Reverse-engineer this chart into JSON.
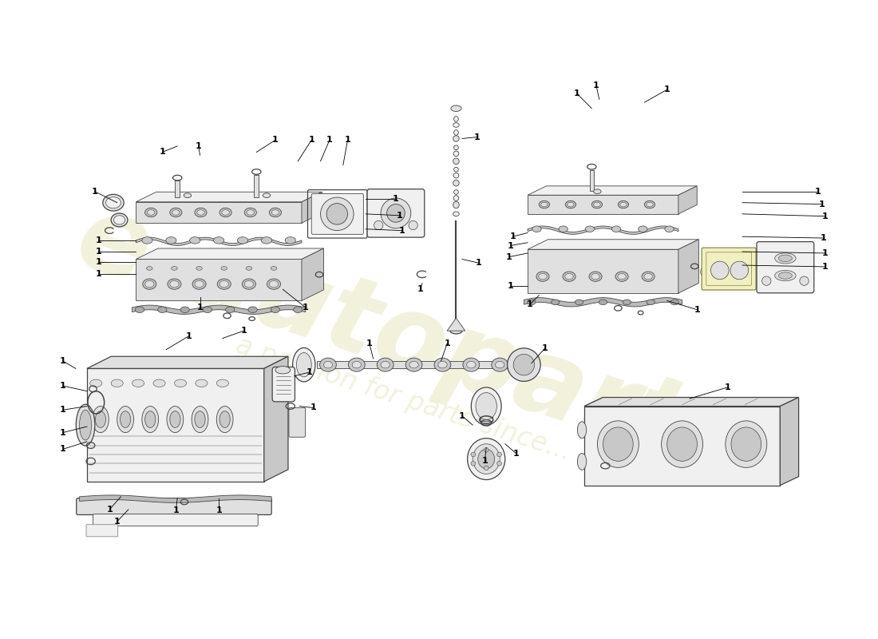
{
  "background_color": "#ffffff",
  "watermark_line1": "e-autoparts",
  "watermark_line2": "a passion for parts since...",
  "watermark_color": "#e8e8c0",
  "label_color": "#000000",
  "line_color": "#000000",
  "edge_color": "#444444",
  "fill_light": "#f0f0f0",
  "fill_mid": "#e0e0e0",
  "fill_dark": "#c8c8c8",
  "figsize": [
    11.0,
    8.0
  ],
  "dpi": 100
}
